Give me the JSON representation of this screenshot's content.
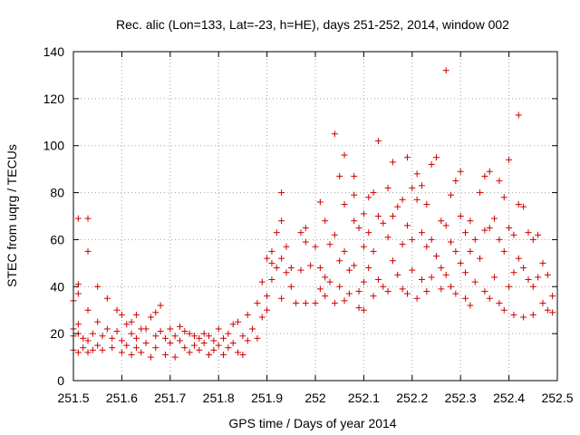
{
  "chart_data": {
    "type": "scatter",
    "title": "Rec. alic (Lon=133, Lat=-23, h=HE), days 251-252, 2014, window 002",
    "xlabel": "GPS time / Days of year 2014",
    "ylabel": "STEC from uqrg / TECUs",
    "xlim": [
      251.5,
      252.5
    ],
    "ylim": [
      0,
      140
    ],
    "x_ticks": [
      251.5,
      251.6,
      251.7,
      251.8,
      251.9,
      252,
      252.1,
      252.2,
      252.3,
      252.4,
      252.5
    ],
    "x_tick_labels": [
      "251.5",
      "251.6",
      "251.7",
      "251.8",
      "251.9",
      "252",
      "252.1",
      "252.2",
      "252.3",
      "252.4",
      "252.5"
    ],
    "y_ticks": [
      0,
      20,
      40,
      60,
      80,
      100,
      120,
      140
    ],
    "y_tick_labels": [
      "0",
      "20",
      "40",
      "60",
      "80",
      "100",
      "120",
      "140"
    ],
    "grid": true,
    "marker": "plus",
    "color": "#cc0000",
    "series": [
      {
        "values": [
          [
            251.5,
            34
          ],
          [
            251.5,
            22
          ],
          [
            251.5,
            13
          ],
          [
            251.5,
            19
          ],
          [
            251.51,
            41
          ],
          [
            251.51,
            37
          ],
          [
            251.51,
            69
          ],
          [
            251.51,
            24
          ],
          [
            251.51,
            20
          ],
          [
            251.51,
            12
          ],
          [
            251.52,
            18
          ],
          [
            251.52,
            14
          ],
          [
            251.53,
            69
          ],
          [
            251.53,
            55
          ],
          [
            251.53,
            30
          ],
          [
            251.53,
            17
          ],
          [
            251.53,
            12
          ],
          [
            251.54,
            20
          ],
          [
            251.54,
            13
          ],
          [
            251.55,
            40
          ],
          [
            251.55,
            25
          ],
          [
            251.55,
            15
          ],
          [
            251.56,
            19
          ],
          [
            251.56,
            13
          ],
          [
            251.57,
            35
          ],
          [
            251.57,
            22
          ],
          [
            251.58,
            18
          ],
          [
            251.58,
            14
          ],
          [
            251.59,
            30
          ],
          [
            251.59,
            21
          ],
          [
            251.6,
            28
          ],
          [
            251.6,
            17
          ],
          [
            251.6,
            12
          ],
          [
            251.61,
            24
          ],
          [
            251.61,
            15
          ],
          [
            251.62,
            25
          ],
          [
            251.62,
            20
          ],
          [
            251.62,
            11
          ],
          [
            251.63,
            28
          ],
          [
            251.63,
            18
          ],
          [
            251.63,
            14
          ],
          [
            251.64,
            22
          ],
          [
            251.64,
            12
          ],
          [
            251.65,
            22
          ],
          [
            251.65,
            16
          ],
          [
            251.66,
            27
          ],
          [
            251.66,
            10
          ],
          [
            251.67,
            29
          ],
          [
            251.67,
            19
          ],
          [
            251.67,
            14
          ],
          [
            251.68,
            32
          ],
          [
            251.68,
            21
          ],
          [
            251.69,
            18
          ],
          [
            251.69,
            11
          ],
          [
            251.7,
            22
          ],
          [
            251.7,
            16
          ],
          [
            251.71,
            19
          ],
          [
            251.71,
            10
          ],
          [
            251.72,
            23
          ],
          [
            251.72,
            17
          ],
          [
            251.73,
            21
          ],
          [
            251.73,
            14
          ],
          [
            251.74,
            20
          ],
          [
            251.74,
            12
          ],
          [
            251.75,
            19
          ],
          [
            251.75,
            15
          ],
          [
            251.76,
            18
          ],
          [
            251.76,
            13
          ],
          [
            251.77,
            20
          ],
          [
            251.77,
            16
          ],
          [
            251.78,
            19
          ],
          [
            251.78,
            11
          ],
          [
            251.79,
            17
          ],
          [
            251.79,
            13
          ],
          [
            251.8,
            22
          ],
          [
            251.8,
            15
          ],
          [
            251.81,
            18
          ],
          [
            251.81,
            11
          ],
          [
            251.82,
            20
          ],
          [
            251.82,
            14
          ],
          [
            251.83,
            24
          ],
          [
            251.83,
            16
          ],
          [
            251.84,
            25
          ],
          [
            251.84,
            12
          ],
          [
            251.85,
            19
          ],
          [
            251.85,
            11
          ],
          [
            251.86,
            28
          ],
          [
            251.86,
            17
          ],
          [
            251.87,
            22
          ],
          [
            251.88,
            33
          ],
          [
            251.88,
            18
          ],
          [
            251.89,
            42
          ],
          [
            251.89,
            27
          ],
          [
            251.9,
            52
          ],
          [
            251.9,
            36
          ],
          [
            251.9,
            30
          ],
          [
            251.91,
            55
          ],
          [
            251.91,
            50
          ],
          [
            251.91,
            43
          ],
          [
            251.92,
            63
          ],
          [
            251.92,
            48
          ],
          [
            251.93,
            80
          ],
          [
            251.93,
            68
          ],
          [
            251.93,
            52
          ],
          [
            251.93,
            35
          ],
          [
            251.94,
            57
          ],
          [
            251.94,
            46
          ],
          [
            251.95,
            48
          ],
          [
            251.95,
            40
          ],
          [
            251.96,
            33
          ],
          [
            251.97,
            63
          ],
          [
            251.97,
            47
          ],
          [
            251.98,
            65
          ],
          [
            251.98,
            59
          ],
          [
            251.98,
            33
          ],
          [
            251.99,
            49
          ],
          [
            252.0,
            57
          ],
          [
            252.0,
            33
          ],
          [
            252.01,
            76
          ],
          [
            252.01,
            48
          ],
          [
            252.01,
            39
          ],
          [
            252.02,
            68
          ],
          [
            252.02,
            44
          ],
          [
            252.02,
            36
          ],
          [
            252.03,
            58
          ],
          [
            252.03,
            42
          ],
          [
            252.04,
            105
          ],
          [
            252.04,
            62
          ],
          [
            252.04,
            33
          ],
          [
            252.05,
            87
          ],
          [
            252.05,
            51
          ],
          [
            252.05,
            40
          ],
          [
            252.06,
            96
          ],
          [
            252.06,
            75
          ],
          [
            252.06,
            55
          ],
          [
            252.06,
            34
          ],
          [
            252.07,
            47
          ],
          [
            252.07,
            37
          ],
          [
            252.08,
            87
          ],
          [
            252.08,
            79
          ],
          [
            252.08,
            68
          ],
          [
            252.08,
            49
          ],
          [
            252.09,
            65
          ],
          [
            252.09,
            38
          ],
          [
            252.09,
            31
          ],
          [
            252.1,
            71
          ],
          [
            252.1,
            57
          ],
          [
            252.1,
            42
          ],
          [
            252.1,
            30
          ],
          [
            252.11,
            78
          ],
          [
            252.11,
            63
          ],
          [
            252.11,
            48
          ],
          [
            252.12,
            80
          ],
          [
            252.12,
            55
          ],
          [
            252.12,
            36
          ],
          [
            252.13,
            102
          ],
          [
            252.13,
            70
          ],
          [
            252.13,
            43
          ],
          [
            252.14,
            67
          ],
          [
            252.14,
            40
          ],
          [
            252.15,
            82
          ],
          [
            252.15,
            61
          ],
          [
            252.15,
            38
          ],
          [
            252.16,
            93
          ],
          [
            252.16,
            70
          ],
          [
            252.16,
            51
          ],
          [
            252.17,
            74
          ],
          [
            252.17,
            45
          ],
          [
            252.18,
            77
          ],
          [
            252.18,
            58
          ],
          [
            252.18,
            39
          ],
          [
            252.19,
            95
          ],
          [
            252.19,
            66
          ],
          [
            252.19,
            37
          ],
          [
            252.2,
            82
          ],
          [
            252.2,
            60
          ],
          [
            252.2,
            47
          ],
          [
            252.21,
            88
          ],
          [
            252.21,
            77
          ],
          [
            252.21,
            35
          ],
          [
            252.22,
            83
          ],
          [
            252.22,
            63
          ],
          [
            252.22,
            43
          ],
          [
            252.23,
            75
          ],
          [
            252.23,
            57
          ],
          [
            252.23,
            38
          ],
          [
            252.24,
            92
          ],
          [
            252.24,
            60
          ],
          [
            252.24,
            44
          ],
          [
            252.25,
            95
          ],
          [
            252.25,
            53
          ],
          [
            252.26,
            68
          ],
          [
            252.26,
            48
          ],
          [
            252.26,
            39
          ],
          [
            252.27,
            132
          ],
          [
            252.27,
            66
          ],
          [
            252.27,
            45
          ],
          [
            252.28,
            79
          ],
          [
            252.28,
            59
          ],
          [
            252.28,
            40
          ],
          [
            252.29,
            85
          ],
          [
            252.29,
            55
          ],
          [
            252.29,
            37
          ],
          [
            252.3,
            89
          ],
          [
            252.3,
            70
          ],
          [
            252.3,
            50
          ],
          [
            252.31,
            63
          ],
          [
            252.31,
            46
          ],
          [
            252.31,
            35
          ],
          [
            252.32,
            68
          ],
          [
            252.32,
            55
          ],
          [
            252.32,
            32
          ],
          [
            252.33,
            60
          ],
          [
            252.33,
            42
          ],
          [
            252.34,
            80
          ],
          [
            252.34,
            52
          ],
          [
            252.35,
            87
          ],
          [
            252.35,
            64
          ],
          [
            252.35,
            38
          ],
          [
            252.36,
            89
          ],
          [
            252.36,
            65
          ],
          [
            252.36,
            35
          ],
          [
            252.37,
            69
          ],
          [
            252.37,
            44
          ],
          [
            252.38,
            85
          ],
          [
            252.38,
            60
          ],
          [
            252.38,
            33
          ],
          [
            252.39,
            78
          ],
          [
            252.39,
            55
          ],
          [
            252.39,
            30
          ],
          [
            252.4,
            94
          ],
          [
            252.4,
            65
          ],
          [
            252.4,
            40
          ],
          [
            252.41,
            62
          ],
          [
            252.41,
            46
          ],
          [
            252.41,
            28
          ],
          [
            252.42,
            113
          ],
          [
            252.42,
            75
          ],
          [
            252.42,
            52
          ],
          [
            252.43,
            74
          ],
          [
            252.43,
            48
          ],
          [
            252.43,
            27
          ],
          [
            252.44,
            63
          ],
          [
            252.44,
            43
          ],
          [
            252.45,
            60
          ],
          [
            252.45,
            40
          ],
          [
            252.45,
            28
          ],
          [
            252.46,
            62
          ],
          [
            252.46,
            44
          ],
          [
            252.47,
            50
          ],
          [
            252.47,
            33
          ],
          [
            252.48,
            45
          ],
          [
            252.48,
            30
          ],
          [
            252.49,
            36
          ],
          [
            252.49,
            29
          ]
        ]
      }
    ]
  }
}
